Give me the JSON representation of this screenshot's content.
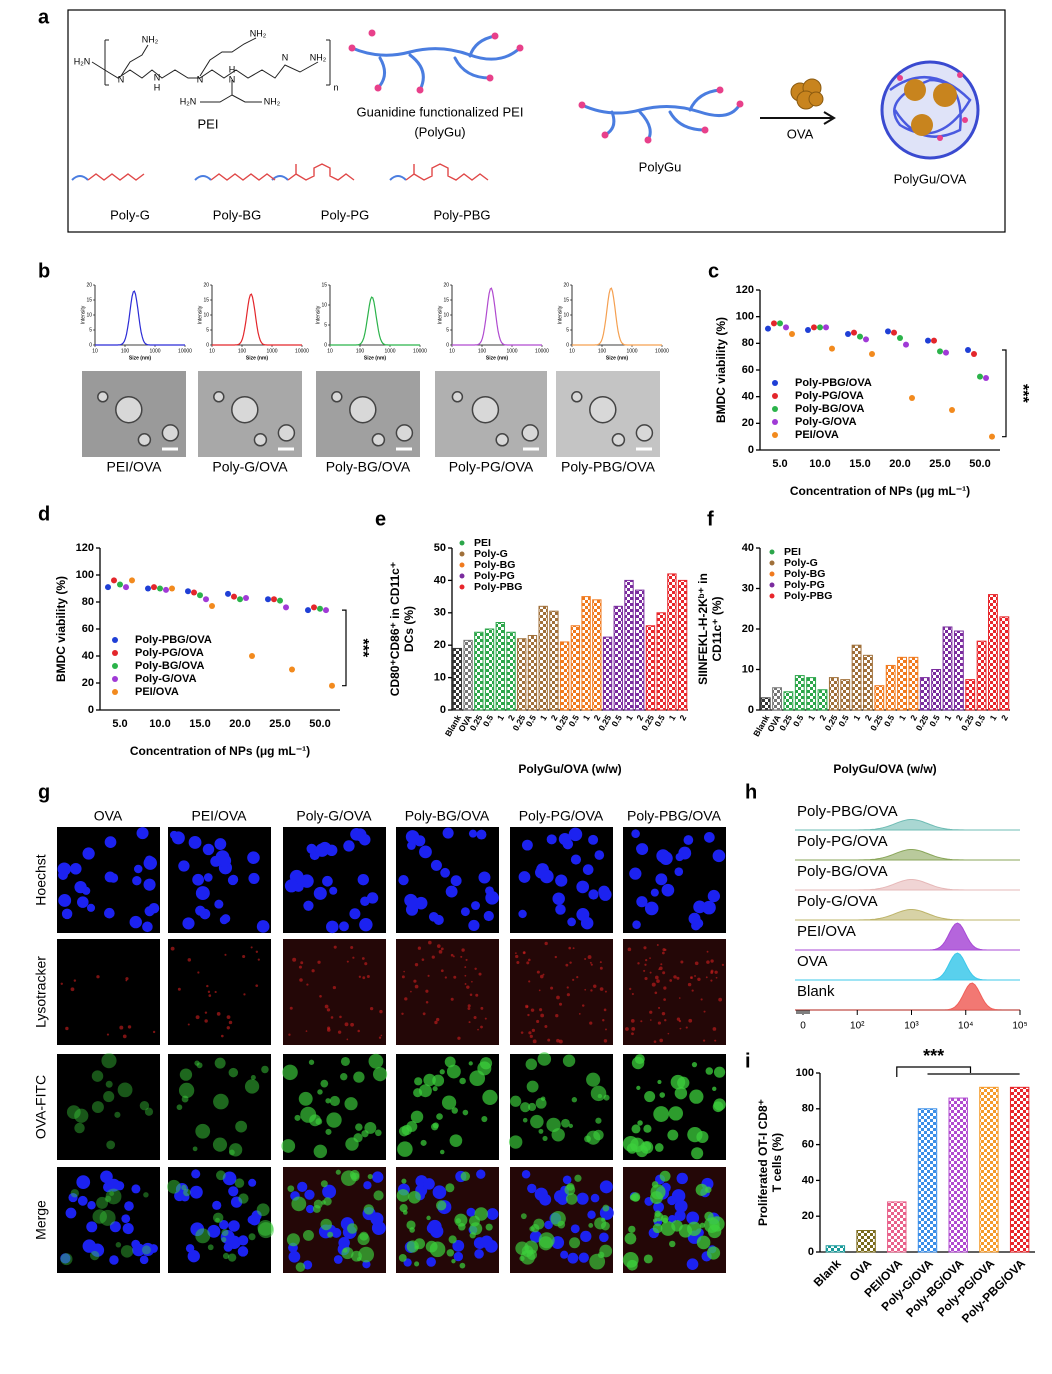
{
  "panel_labels": [
    "a",
    "b",
    "c",
    "d",
    "e",
    "f",
    "g",
    "h",
    "i"
  ],
  "scheme": {
    "pei": "PEI",
    "pei_atoms": [
      "H₂N",
      "N",
      "NH₂",
      "N",
      "H",
      "N",
      "NH₂",
      "N",
      "H",
      "N",
      "NH₂",
      "n",
      "H₂N",
      "NH₂"
    ],
    "polygu_caption": [
      "Guanidine functionalized PEI",
      "(PolyGu)"
    ],
    "polygu": "PolyGu",
    "ova": "OVA",
    "product": "PolyGu/OVA",
    "polymers": [
      "Poly-G",
      "Poly-BG",
      "Poly-PG",
      "Poly-PBG"
    ]
  },
  "panel_b": {
    "y_label": "Intensity",
    "x_label": "Size (nm)",
    "xlim": [
      10,
      10000
    ],
    "xticks": [
      10,
      100,
      1000,
      10000
    ],
    "plots": [
      {
        "color": "#2b2bd6",
        "peak_size": 200,
        "peak_height": 18,
        "ylim": [
          0,
          20
        ],
        "yticks": [
          0,
          5,
          10,
          15,
          20
        ]
      },
      {
        "color": "#e3262b",
        "peak_size": 200,
        "peak_height": 17,
        "ylim": [
          0,
          20
        ],
        "yticks": [
          0,
          5,
          10,
          15,
          20
        ]
      },
      {
        "color": "#2bb34a",
        "peak_size": 250,
        "peak_height": 12,
        "ylim": [
          0,
          15
        ],
        "yticks": [
          0,
          5,
          10,
          15
        ]
      },
      {
        "color": "#b04ad0",
        "peak_size": 200,
        "peak_height": 19,
        "ylim": [
          0,
          20
        ],
        "yticks": [
          0,
          5,
          10,
          15,
          20
        ]
      },
      {
        "color": "#f5a050",
        "peak_size": 200,
        "peak_height": 19,
        "ylim": [
          0,
          20
        ],
        "yticks": [
          0,
          5,
          10,
          15,
          20
        ]
      }
    ],
    "samples": [
      "PEI/OVA",
      "Poly-G/OVA",
      "Poly-BG/OVA",
      "Poly-PG/OVA",
      "Poly-PBG/OVA"
    ]
  },
  "chart_data": [
    {
      "type": "dot",
      "x_label": "Concentration of NPs (μg mL⁻¹)",
      "y_label": "BMDC viability (%)",
      "categories": [
        "5.0",
        "10.0",
        "15.0",
        "20.0",
        "25.0",
        "50.0"
      ],
      "series": [
        {
          "name": "Poly-PBG/OVA",
          "color": "#1f3fd6",
          "values": [
            91,
            90,
            87,
            89,
            82,
            75
          ]
        },
        {
          "name": "Poly-PG/OVA",
          "color": "#e3262b",
          "values": [
            95,
            92,
            88,
            88,
            82,
            72
          ]
        },
        {
          "name": "Poly-BG/OVA",
          "color": "#2bb34a",
          "values": [
            95,
            92,
            85,
            84,
            74,
            55
          ]
        },
        {
          "name": "Poly-G/OVA",
          "color": "#a03ad6",
          "values": [
            92,
            92,
            83,
            79,
            73,
            54
          ]
        },
        {
          "name": "PEI/OVA",
          "color": "#f28a1e",
          "values": [
            87,
            76,
            72,
            39,
            30,
            10
          ]
        }
      ],
      "ylim": [
        0,
        120
      ],
      "yticks": [
        0,
        20,
        40,
        60,
        80,
        100,
        120
      ],
      "legend": "lower left",
      "annotation": "***"
    },
    {
      "type": "dot",
      "x_label": "Concentration of NPs (μg mL⁻¹)",
      "y_label": "BMDC viability (%)",
      "categories": [
        "5.0",
        "10.0",
        "15.0",
        "20.0",
        "25.0",
        "50.0"
      ],
      "series": [
        {
          "name": "Poly-PBG/OVA",
          "color": "#1f3fd6",
          "values": [
            91,
            90,
            88,
            86,
            82,
            74
          ]
        },
        {
          "name": "Poly-PG/OVA",
          "color": "#e3262b",
          "values": [
            96,
            91,
            87,
            84,
            82,
            76
          ]
        },
        {
          "name": "Poly-BG/OVA",
          "color": "#2bb34a",
          "values": [
            93,
            90,
            85,
            82,
            81,
            75
          ]
        },
        {
          "name": "Poly-G/OVA",
          "color": "#a03ad6",
          "values": [
            91,
            89,
            82,
            83,
            76,
            74
          ]
        },
        {
          "name": "PEI/OVA",
          "color": "#f28a1e",
          "values": [
            96,
            90,
            77,
            40,
            30,
            18
          ]
        }
      ],
      "ylim": [
        0,
        120
      ],
      "yticks": [
        0,
        20,
        40,
        60,
        80,
        100,
        120
      ],
      "legend": "lower left",
      "annotation": "***"
    },
    {
      "type": "bar",
      "x_label": "PolyGu/OVA (w/w)",
      "y_label": [
        "CD80⁺CD86⁺ in CD11c⁺",
        "DCs (%)"
      ],
      "categories": [
        "Blank",
        "OVA",
        "0.25",
        "0.5",
        "1",
        "2",
        "0.25",
        "0.5",
        "1",
        "2",
        "0.25",
        "0.5",
        "1",
        "2",
        "0.25",
        "0.5",
        "1",
        "2",
        "0.25",
        "0.5",
        "1",
        "2"
      ],
      "values": [
        19,
        21.5,
        24,
        25,
        27,
        24,
        22,
        23,
        32,
        30.5,
        21,
        26,
        35,
        34,
        22.5,
        32,
        40,
        37,
        26,
        30,
        42,
        40
      ],
      "colors": [
        "#333333",
        "#777777",
        "#2ca64a",
        "#2ca64a",
        "#2ca64a",
        "#2ca64a",
        "#a0703a",
        "#a0703a",
        "#a0703a",
        "#a0703a",
        "#f07a1e",
        "#f07a1e",
        "#f07a1e",
        "#f07a1e",
        "#7a2c9e",
        "#7a2c9e",
        "#7a2c9e",
        "#7a2c9e",
        "#e8262b",
        "#e8262b",
        "#e8262b",
        "#e8262b"
      ],
      "legend_entries": [
        {
          "name": "PEI",
          "color": "#2ca64a"
        },
        {
          "name": "Poly-G",
          "color": "#a0703a"
        },
        {
          "name": "Poly-BG",
          "color": "#f07a1e"
        },
        {
          "name": "Poly-PG",
          "color": "#7a2c9e"
        },
        {
          "name": "Poly-PBG",
          "color": "#e8262b"
        }
      ],
      "ylim": [
        0,
        50
      ],
      "yticks": [
        0,
        10,
        20,
        30,
        40,
        50
      ],
      "legend": "upper left"
    },
    {
      "type": "bar",
      "x_label": "PolyGu/OVA (w/w)",
      "y_label": [
        "SIINFEKL-H-2Kᵇ⁺ in",
        "CD11c⁺ (%)"
      ],
      "categories": [
        "Blank",
        "OVA",
        "0.25",
        "0.5",
        "1",
        "2",
        "0.25",
        "0.5",
        "1",
        "2",
        "0.25",
        "0.5",
        "1",
        "2",
        "0.25",
        "0.5",
        "1",
        "2",
        "0.25",
        "0.5",
        "1",
        "2"
      ],
      "values": [
        3,
        5.5,
        4.5,
        8.5,
        8,
        5,
        8,
        7.5,
        16,
        13.5,
        6,
        11,
        13,
        13,
        8,
        10,
        20.5,
        19.5,
        7.5,
        17,
        28.5,
        23
      ],
      "colors": [
        "#333333",
        "#777777",
        "#2ca64a",
        "#2ca64a",
        "#2ca64a",
        "#2ca64a",
        "#a0703a",
        "#a0703a",
        "#a0703a",
        "#a0703a",
        "#f07a1e",
        "#f07a1e",
        "#f07a1e",
        "#f07a1e",
        "#7a2c9e",
        "#7a2c9e",
        "#7a2c9e",
        "#7a2c9e",
        "#e8262b",
        "#e8262b",
        "#e8262b",
        "#e8262b"
      ],
      "legend_entries": [
        {
          "name": "PEI",
          "color": "#2ca64a"
        },
        {
          "name": "Poly-G",
          "color": "#a0703a"
        },
        {
          "name": "Poly-BG",
          "color": "#f07a1e"
        },
        {
          "name": "Poly-PG",
          "color": "#7a2c9e"
        },
        {
          "name": "Poly-PBG",
          "color": "#e8262b"
        }
      ],
      "ylim": [
        0,
        40
      ],
      "yticks": [
        0,
        10,
        20,
        30,
        40
      ],
      "legend": "upper left"
    },
    {
      "type": "ridge",
      "series": [
        {
          "name": "Poly-PBG/OVA",
          "color": "#6fbcb4",
          "peak": 1000
        },
        {
          "name": "Poly-PG/OVA",
          "color": "#8aa65a",
          "peak": 1000
        },
        {
          "name": "Poly-BG/OVA",
          "color": "#e6b8b8",
          "peak": 1000
        },
        {
          "name": "Poly-G/OVA",
          "color": "#bdb46a",
          "peak": 1000
        },
        {
          "name": "PEI/OVA",
          "color": "#a84ad6",
          "peak": 7000
        },
        {
          "name": "OVA",
          "color": "#3cc8ea",
          "peak": 7000
        },
        {
          "name": "Blank",
          "color": "#f0605a",
          "peak": 13000
        }
      ],
      "xlim": [
        0,
        100000
      ],
      "xticks": [
        0,
        {
          "value": 100,
          "label": "10²"
        },
        {
          "value": 1000,
          "label": "10³"
        },
        {
          "value": 10000,
          "label": "10⁴"
        },
        {
          "value": 100000,
          "label": "10⁵"
        }
      ],
      "log_scale": true
    },
    {
      "type": "bar",
      "y_label": [
        "Proliferated OT-I CD8⁺",
        "T cells (%)"
      ],
      "categories": [
        "Blank",
        "OVA",
        "PEI/OVA",
        "Poly-G/OVA",
        "Poly-BG/OVA",
        "Poly-PG/OVA",
        "Poly-PBG/OVA"
      ],
      "values": [
        3.5,
        12,
        28,
        80,
        86,
        92,
        92
      ],
      "colors": [
        "#1a9a9a",
        "#7a6a1a",
        "#e8608a",
        "#3a8ee8",
        "#b04ad0",
        "#f59a2a",
        "#e8262b"
      ],
      "ylim": [
        0,
        100
      ],
      "yticks": [
        0,
        20,
        40,
        60,
        80,
        100
      ],
      "annotation": "***"
    }
  ],
  "panel_g": {
    "columns": [
      "OVA",
      "PEI/OVA",
      "Poly-G/OVA",
      "Poly-BG/OVA",
      "Poly-PG/OVA",
      "Poly-PBG/OVA"
    ],
    "rows": [
      "Hoechst",
      "Lysotracker",
      "OVA-FITC",
      "Merge"
    ]
  }
}
